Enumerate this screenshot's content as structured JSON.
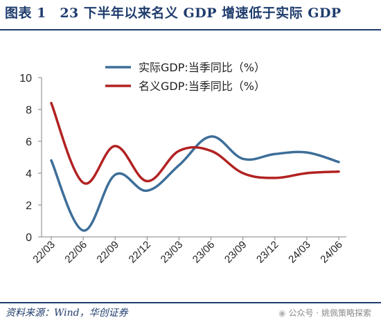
{
  "header": {
    "title": "图表 1　23 下半年以来名义 GDP 增速低于实际 GDP"
  },
  "footer": {
    "source": "资料来源：Wind，华创证券",
    "watermark": "公众号 · 姚佩策略探索",
    "watermark_icon": "wechat-icon"
  },
  "chart_data": {
    "type": "line",
    "categories": [
      "22/03",
      "22/06",
      "22/09",
      "22/12",
      "23/03",
      "23/06",
      "23/09",
      "23/12",
      "24/03",
      "24/06"
    ],
    "ylim": [
      0,
      10
    ],
    "yticks": [
      "0",
      "2",
      "4",
      "6",
      "8",
      "10"
    ],
    "grid": false,
    "legend_position": "top-center",
    "series": [
      {
        "name": "实际GDP:当季同比（%）",
        "color": "#3d6e99",
        "values": [
          4.8,
          0.4,
          3.9,
          2.9,
          4.5,
          6.3,
          4.9,
          5.2,
          5.3,
          4.7
        ]
      },
      {
        "name": "名义GDP:当季同比（%）",
        "color": "#b22222",
        "values": [
          8.4,
          3.4,
          5.7,
          3.5,
          5.4,
          5.4,
          4.0,
          3.7,
          4.0,
          4.1
        ]
      }
    ]
  }
}
